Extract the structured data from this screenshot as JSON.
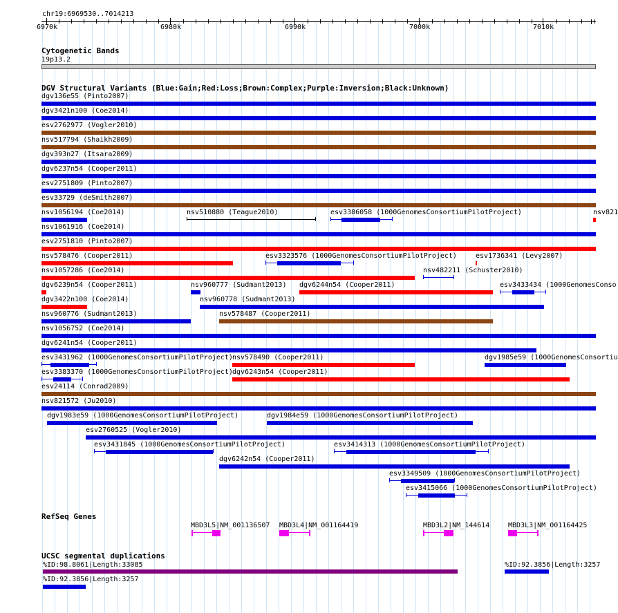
{
  "region": "chr19:6969530..7014213",
  "ruler": {
    "ticks": [
      "6970k",
      "6980k",
      "6990k",
      "7000k",
      "7010k"
    ]
  },
  "tracks": {
    "cyto": {
      "title": "Cytogenetic Bands",
      "band": "19p13.2"
    },
    "dgv": {
      "title": "DGV Structural Variants (Blue:Gain;Red:Loss;Brown:Complex;Purple:Inversion;Black:Unknown)",
      "features": [
        {
          "label": "dgv136e55 (Pinto2007)",
          "type": "gain"
        },
        {
          "label": "dgv3421n100 (Coe2014)",
          "type": "gain"
        },
        {
          "label": "esv2762977 (Vogler2010)",
          "type": "complex"
        },
        {
          "label": "nsv517794 (Shaikh2009)",
          "type": "complex"
        },
        {
          "label": "dgv393n27 (Itsara2009)",
          "type": "gain"
        },
        {
          "label": "dgv6237n54 (Cooper2011)",
          "type": "gain"
        },
        {
          "label": "esv2751809 (Pinto2007)",
          "type": "gain"
        },
        {
          "label": "esv33729 (deSmith2007)",
          "type": "complex"
        },
        {
          "label": "nsv1056194 (Coe2014)",
          "type": "gain"
        },
        {
          "label": "nsv510880 (Teague2010)",
          "type": "unknown"
        },
        {
          "label": "esv3386058 (1000GenomesConsortiumPilotProject)",
          "type": "gain"
        },
        {
          "label": "nsv821",
          "type": "loss"
        },
        {
          "label": "nsv1061916 (Coe2014)",
          "type": "gain"
        },
        {
          "label": "esv2751810 (Pinto2007)",
          "type": "loss"
        },
        {
          "label": "nsv578476 (Cooper2011)",
          "type": "loss"
        },
        {
          "label": "esv3323576 (1000GenomesConsortiumPilotProject)",
          "type": "gain"
        },
        {
          "label": "esv1736341 (Levy2007)",
          "type": "loss"
        },
        {
          "label": "nsv1057286 (Coe2014)",
          "type": "loss"
        },
        {
          "label": "nsv482211 (Schuster2010)",
          "type": "gain"
        },
        {
          "label": "dgv6239n54 (Cooper2011)",
          "type": "loss"
        },
        {
          "label": "nsv960777 (Sudmant2013)",
          "type": "gain"
        },
        {
          "label": "dgv6244n54 (Cooper2011)",
          "type": "loss"
        },
        {
          "label": "esv3433434 (1000GenomesConso",
          "type": "gain"
        },
        {
          "label": "dgv3422n100 (Coe2014)",
          "type": "loss"
        },
        {
          "label": "nsv960778 (Sudmant2013)",
          "type": "gain"
        },
        {
          "label": "nsv960776 (Sudmant2013)",
          "type": "gain"
        },
        {
          "label": "nsv578487 (Cooper2011)",
          "type": "complex"
        },
        {
          "label": "nsv1056752 (Coe2014)",
          "type": "gain"
        },
        {
          "label": "dgv6241n54 (Cooper2011)",
          "type": "gain"
        },
        {
          "label": "esv3431962 (1000GenomesConsortiumPilotProject)",
          "type": "gain"
        },
        {
          "label": "nsv578490 (Cooper2011)",
          "type": "loss"
        },
        {
          "label": "dgv1985e59 (1000GenomesConsortiu",
          "type": "gain"
        },
        {
          "label": "esv3383370 (1000GenomesConsortiumPilotProject)",
          "type": "gain"
        },
        {
          "label": "dgv6243n54 (Cooper2011)",
          "type": "loss"
        },
        {
          "label": "esv24114 (Conrad2009)",
          "type": "complex"
        },
        {
          "label": "nsv821572 (Ju2010)",
          "type": "gain"
        },
        {
          "label": "dgv1983e59 (1000GenomesConsortiumPilotProject)",
          "type": "gain"
        },
        {
          "label": "dgv1984e59 (1000GenomesConsortiumPilotProject)",
          "type": "gain"
        },
        {
          "label": "esv2760525 (Vogler2010)",
          "type": "gain"
        },
        {
          "label": "esv3431845 (1000GenomesConsortiumPilotProject)",
          "type": "gain"
        },
        {
          "label": "esv3414313 (1000GenomesConsortiumPilotProject)",
          "type": "gain"
        },
        {
          "label": "dgv6242n54 (Cooper2011)",
          "type": "gain"
        },
        {
          "label": "esv3349509 (1000GenomesConsortiumPilotProject)",
          "type": "gain"
        },
        {
          "label": "esv3415066 (1000GenomesConsortiumPilotProject)",
          "type": "gain"
        }
      ]
    },
    "refseq": {
      "title": "RefSeq Genes",
      "genes": [
        {
          "label": "MBD3L5|NM_001136507"
        },
        {
          "label": "MBD3L4|NM_001164419"
        },
        {
          "label": "MBD3L2|NM_144614"
        },
        {
          "label": "MBD3L3|NM_001164425"
        }
      ]
    },
    "segdup": {
      "title": "UCSC segmental duplications",
      "features": [
        {
          "label": "%ID:98.8061|Length:33085",
          "color": "purple"
        },
        {
          "label": "%ID:92.3856|Length:3257",
          "color": "blue"
        },
        {
          "label": "%ID:92.3856|Length:3257",
          "color": "blue"
        }
      ]
    }
  },
  "colors": {
    "gain": "#0000dd",
    "loss": "#ff0000",
    "complex": "#8b4513",
    "unknown": "#000000",
    "gene": "#ee00ee",
    "purple": "#800080",
    "blue": "#0000dd",
    "grid": "#cfe4f6",
    "band": "#cccccc"
  }
}
